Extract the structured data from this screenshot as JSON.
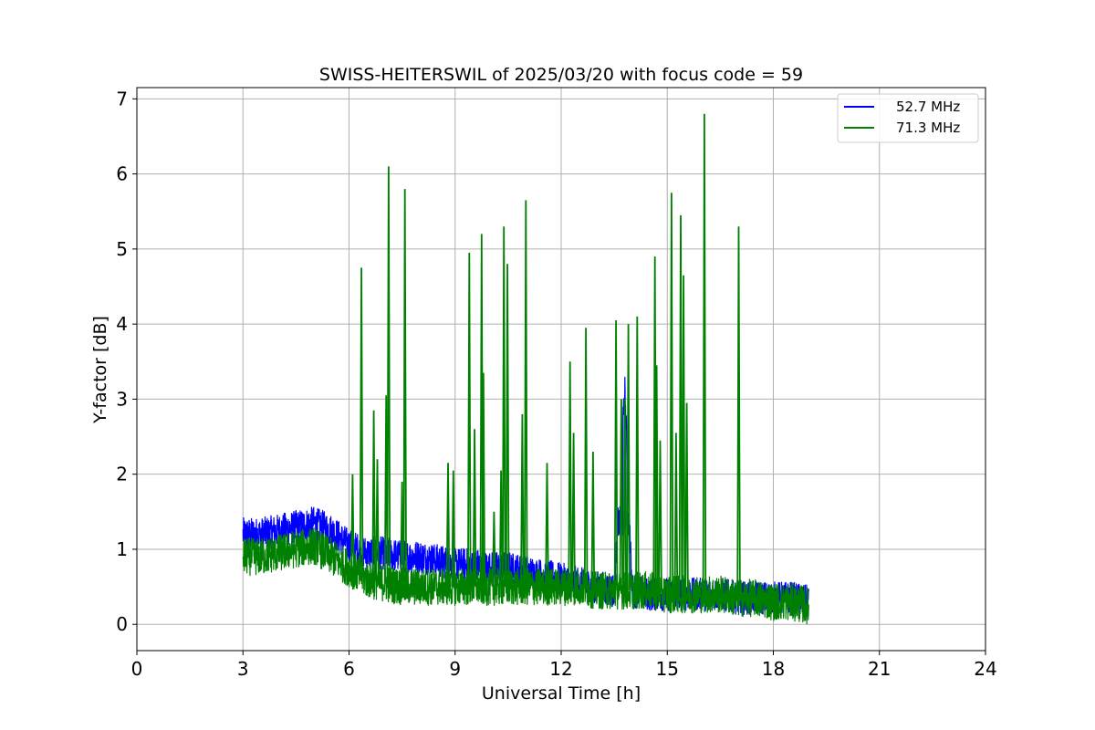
{
  "chart_data": {
    "type": "line",
    "title": "SWISS-HEITERSWIL of 2025/03/20 with focus code = 59",
    "xlabel": "Universal Time [h]",
    "ylabel": "Y-factor [dB]",
    "xlim": [
      0,
      24
    ],
    "ylim": [
      -0.35,
      7.15
    ],
    "xticks": [
      0,
      3,
      6,
      9,
      12,
      15,
      18,
      21,
      24
    ],
    "yticks": [
      0,
      1,
      2,
      3,
      4,
      5,
      6,
      7
    ],
    "grid": true,
    "legend_position": "top-right",
    "series": [
      {
        "name": "52.7 MHz",
        "color": "#0000ff",
        "x": [
          3.0,
          3.5,
          4.0,
          4.5,
          5.0,
          5.5,
          6.0,
          6.5,
          7.0,
          7.5,
          8.0,
          8.5,
          9.0,
          9.5,
          10.0,
          10.5,
          11.0,
          11.5,
          12.0,
          12.5,
          13.0,
          13.5,
          13.8,
          14.0,
          14.5,
          15.0,
          15.5,
          16.0,
          16.5,
          17.0,
          17.5,
          18.0,
          18.5,
          19.0
        ],
        "y": [
          1.2,
          1.2,
          1.25,
          1.3,
          1.35,
          1.25,
          1.05,
          0.95,
          0.95,
          0.9,
          0.9,
          0.85,
          0.8,
          0.8,
          0.75,
          0.75,
          0.7,
          0.65,
          0.6,
          0.55,
          0.5,
          0.45,
          3.1,
          0.45,
          0.4,
          0.4,
          0.4,
          0.4,
          0.4,
          0.35,
          0.35,
          0.35,
          0.35,
          0.3
        ],
        "spread": 0.22
      },
      {
        "name": "71.3 MHz",
        "color": "#008000",
        "x": [
          3.0,
          3.5,
          4.0,
          4.5,
          5.0,
          5.5,
          6.0,
          6.5,
          7.0,
          7.5,
          8.0,
          8.5,
          9.0,
          9.5,
          10.0,
          10.5,
          11.0,
          11.5,
          12.0,
          12.5,
          13.0,
          13.5,
          14.0,
          14.5,
          15.0,
          15.5,
          16.0,
          16.5,
          17.0,
          17.5,
          18.0,
          18.5,
          19.0
        ],
        "y": [
          0.9,
          0.9,
          0.95,
          1.0,
          1.05,
          0.9,
          0.75,
          0.6,
          0.55,
          0.5,
          0.5,
          0.5,
          0.5,
          0.5,
          0.5,
          0.5,
          0.5,
          0.5,
          0.5,
          0.5,
          0.45,
          0.45,
          0.45,
          0.45,
          0.4,
          0.4,
          0.4,
          0.4,
          0.35,
          0.35,
          0.3,
          0.3,
          0.25
        ],
        "spread": 0.25,
        "spikes": [
          [
            6.1,
            2.0
          ],
          [
            6.35,
            4.75
          ],
          [
            6.7,
            2.85
          ],
          [
            6.8,
            2.2
          ],
          [
            7.05,
            3.05
          ],
          [
            7.12,
            6.1
          ],
          [
            7.5,
            1.9
          ],
          [
            7.58,
            5.8
          ],
          [
            8.8,
            2.15
          ],
          [
            8.95,
            2.05
          ],
          [
            9.4,
            4.95
          ],
          [
            9.55,
            2.6
          ],
          [
            9.75,
            5.2
          ],
          [
            9.8,
            3.35
          ],
          [
            10.1,
            1.5
          ],
          [
            10.3,
            2.05
          ],
          [
            10.38,
            5.3
          ],
          [
            10.48,
            4.8
          ],
          [
            10.9,
            2.8
          ],
          [
            11.0,
            5.65
          ],
          [
            11.6,
            2.15
          ],
          [
            12.25,
            3.5
          ],
          [
            12.35,
            2.55
          ],
          [
            12.7,
            3.95
          ],
          [
            12.9,
            2.3
          ],
          [
            13.55,
            4.05
          ],
          [
            13.7,
            3.0
          ],
          [
            13.8,
            3.0
          ],
          [
            13.9,
            4.0
          ],
          [
            14.15,
            4.1
          ],
          [
            14.65,
            4.9
          ],
          [
            14.7,
            3.45
          ],
          [
            14.8,
            2.45
          ],
          [
            15.12,
            5.75
          ],
          [
            15.25,
            2.55
          ],
          [
            15.38,
            5.45
          ],
          [
            15.46,
            4.65
          ],
          [
            15.55,
            2.95
          ],
          [
            16.05,
            6.8
          ],
          [
            17.02,
            5.3
          ]
        ]
      }
    ]
  }
}
